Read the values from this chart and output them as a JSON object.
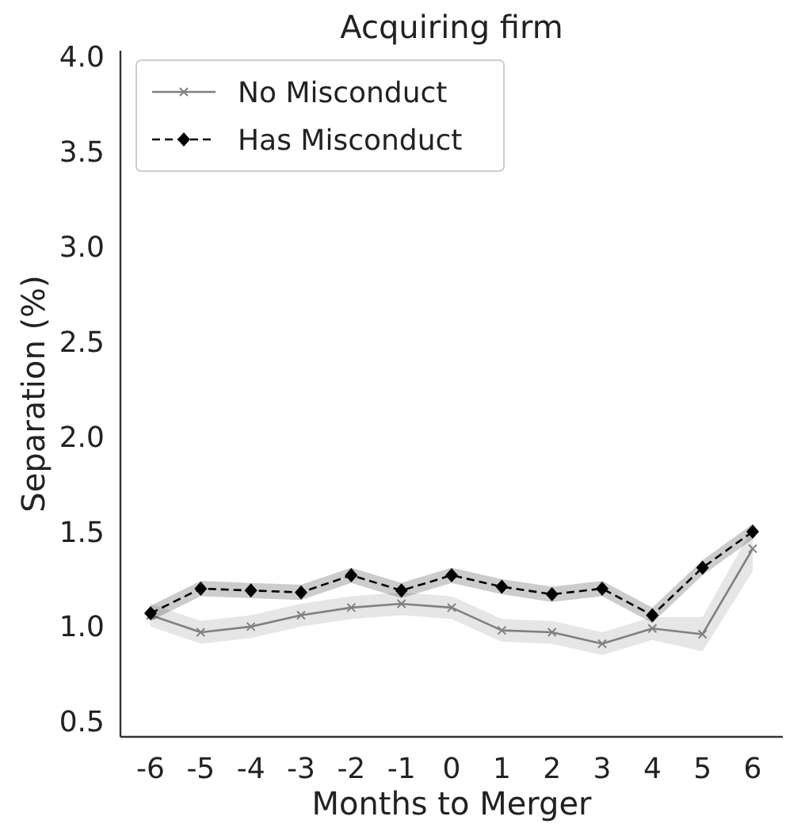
{
  "chart_data": {
    "type": "line",
    "title": "Acquiring firm",
    "xlabel": "Months to Merger",
    "ylabel": "Separation (%)",
    "x": [
      -6,
      -5,
      -4,
      -3,
      -2,
      -1,
      0,
      1,
      2,
      3,
      4,
      5,
      6
    ],
    "xlim": [
      -6.6,
      6.6
    ],
    "xticks": [
      -6,
      -5,
      -4,
      -3,
      -2,
      -1,
      0,
      1,
      2,
      3,
      4,
      5,
      6
    ],
    "ylim": [
      0.42,
      4.03
    ],
    "yticks": [
      0.5,
      {
        "value": 1,
        "label": "1.0"
      },
      1.5,
      {
        "value": 2,
        "label": "2.0"
      },
      2.5,
      {
        "value": 3,
        "label": "3.0"
      },
      3.5,
      {
        "value": 4,
        "label": "4.0"
      }
    ],
    "grid": false,
    "legend": "top left",
    "series": [
      {
        "name": "No Misconduct",
        "color": "#808080",
        "marker": "cross",
        "line_style": "solid",
        "values": [
          1.06,
          0.97,
          1.0,
          1.06,
          1.1,
          1.12,
          1.1,
          0.98,
          0.97,
          0.91,
          0.99,
          0.96,
          1.41
        ],
        "lower": [
          1.0,
          0.91,
          0.94,
          1.0,
          1.04,
          1.06,
          1.04,
          0.92,
          0.91,
          0.85,
          0.93,
          0.87,
          1.29
        ],
        "upper": [
          1.12,
          1.03,
          1.06,
          1.12,
          1.16,
          1.18,
          1.16,
          1.04,
          1.03,
          0.97,
          1.05,
          1.05,
          1.52
        ]
      },
      {
        "name": "Has Misconduct",
        "color": "#000000",
        "marker": "diamond",
        "line_style": "dashed",
        "values": [
          1.07,
          1.2,
          1.19,
          1.18,
          1.27,
          1.19,
          1.27,
          1.21,
          1.17,
          1.2,
          1.06,
          1.31,
          1.5
        ],
        "lower": [
          1.03,
          1.16,
          1.15,
          1.14,
          1.23,
          1.15,
          1.23,
          1.17,
          1.13,
          1.16,
          1.02,
          1.27,
          1.46
        ],
        "upper": [
          1.11,
          1.24,
          1.23,
          1.22,
          1.31,
          1.23,
          1.31,
          1.25,
          1.21,
          1.24,
          1.1,
          1.35,
          1.54
        ]
      }
    ]
  }
}
